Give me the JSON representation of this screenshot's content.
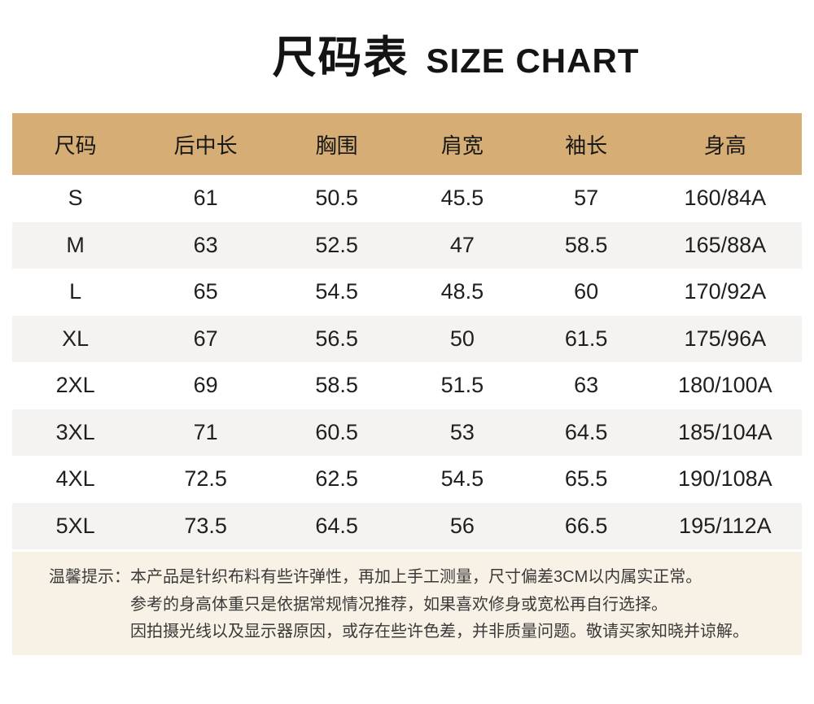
{
  "title": {
    "zh": "尺码表",
    "en": "SIZE CHART"
  },
  "chart_data": {
    "type": "table",
    "title": "尺码表 SIZE CHART",
    "columns": [
      "尺码",
      "后中长",
      "胸围",
      "肩宽",
      "袖长",
      "身高"
    ],
    "rows": [
      [
        "S",
        "61",
        "50.5",
        "45.5",
        "57",
        "160/84A"
      ],
      [
        "M",
        "63",
        "52.5",
        "47",
        "58.5",
        "165/88A"
      ],
      [
        "L",
        "65",
        "54.5",
        "48.5",
        "60",
        "170/92A"
      ],
      [
        "XL",
        "67",
        "56.5",
        "50",
        "61.5",
        "175/96A"
      ],
      [
        "2XL",
        "69",
        "58.5",
        "51.5",
        "63",
        "180/100A"
      ],
      [
        "3XL",
        "71",
        "60.5",
        "53",
        "64.5",
        "185/104A"
      ],
      [
        "4XL",
        "72.5",
        "62.5",
        "54.5",
        "65.5",
        "190/108A"
      ],
      [
        "5XL",
        "73.5",
        "64.5",
        "56",
        "66.5",
        "195/112A"
      ]
    ],
    "layout": {
      "header_row": true,
      "zebra_stripes": true,
      "grid": false
    }
  },
  "notes": {
    "label": "温馨提示：",
    "lines": [
      "本产品是针织布料有些许弹性，再加上手工测量，尺寸偏差3CM以内属实正常。",
      "参考的身高体重只是依据常规情况推荐，如果喜欢修身或宽松再自行选择。",
      "因拍摄光线以及显示器原因，或存在些许色差，并非质量问题。敬请买家知晓并谅解。"
    ]
  },
  "colors": {
    "header_bg": "#d6ad74",
    "row_alt_bg": "#f4f3f1",
    "notes_bg": "#f8f2e6",
    "text": "#1f1f1f"
  }
}
